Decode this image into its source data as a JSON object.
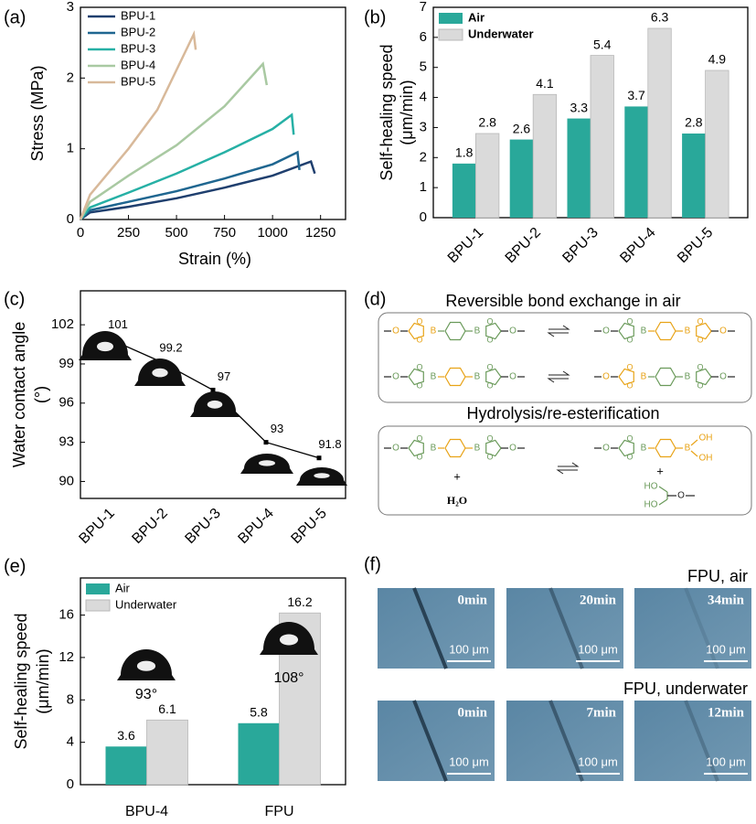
{
  "chart_data": [
    {
      "type": "line",
      "panel_label": "(a)",
      "x_label": "Strain (%)",
      "y_label": [
        "Stress (MPa)"
      ],
      "xlim": [
        0,
        1380
      ],
      "xticks": [
        0,
        250,
        500,
        750,
        1000,
        1250
      ],
      "ylim": [
        0,
        3
      ],
      "yticks": [
        0,
        1,
        2,
        3
      ],
      "legend": "upper left",
      "series": [
        {
          "name": "BPU-1",
          "color": "#1f3f6e",
          "x": [
            0,
            50,
            250,
            500,
            750,
            1000,
            1200,
            1220
          ],
          "values": [
            0,
            0.1,
            0.18,
            0.3,
            0.45,
            0.62,
            0.82,
            0.65
          ]
        },
        {
          "name": "BPU-2",
          "color": "#1f6690",
          "x": [
            0,
            50,
            250,
            500,
            750,
            1000,
            1130,
            1140
          ],
          "values": [
            0,
            0.13,
            0.25,
            0.4,
            0.58,
            0.78,
            0.95,
            0.7
          ]
        },
        {
          "name": "BPU-3",
          "color": "#26b0a5",
          "x": [
            0,
            50,
            250,
            500,
            750,
            1000,
            1100,
            1110
          ],
          "values": [
            0,
            0.17,
            0.38,
            0.65,
            0.95,
            1.28,
            1.48,
            1.2
          ]
        },
        {
          "name": "BPU-4",
          "color": "#a9c9a2",
          "x": [
            0,
            50,
            250,
            500,
            750,
            950,
            970
          ],
          "values": [
            0,
            0.25,
            0.62,
            1.05,
            1.6,
            2.2,
            1.9
          ]
        },
        {
          "name": "BPU-5",
          "color": "#d8b99a",
          "x": [
            0,
            50,
            250,
            400,
            590,
            600
          ],
          "values": [
            0,
            0.35,
            1.0,
            1.55,
            2.62,
            2.4
          ]
        }
      ]
    },
    {
      "type": "bar",
      "panel_label": "(b)",
      "y_label": [
        "Self-healing speed",
        "(μm/min)"
      ],
      "categories": [
        "BPU-1",
        "BPU-2",
        "BPU-3",
        "BPU-4",
        "BPU-5"
      ],
      "ylim": [
        0,
        7
      ],
      "yticks": [
        0,
        1,
        2,
        3,
        4,
        5,
        6,
        7
      ],
      "legend": "upper left",
      "series": [
        {
          "name": "Air",
          "color": "#29a89a",
          "values": [
            1.8,
            2.6,
            3.3,
            3.7,
            2.8
          ]
        },
        {
          "name": "Underwater",
          "color": "#dadada",
          "values": [
            2.8,
            4.1,
            5.4,
            6.3,
            4.9
          ]
        }
      ]
    },
    {
      "type": "line",
      "panel_label": "(c)",
      "y_label": [
        "Water contact angle",
        "(°)"
      ],
      "categories": [
        "BPU-1",
        "BPU-2",
        "BPU-3",
        "BPU-4",
        "BPU-5"
      ],
      "values": [
        101,
        99.2,
        97,
        93,
        91.8
      ],
      "color": "#000000",
      "ylim": [
        88.7,
        104.6
      ],
      "yticks": [
        90,
        93,
        96,
        99,
        102
      ]
    },
    {
      "type": "bar",
      "panel_label": "(e)",
      "y_label": [
        "Self-healing speed",
        "(μm/min)"
      ],
      "categories": [
        "BPU-4",
        "FPU"
      ],
      "annotations": [
        "93°",
        "108°"
      ],
      "ylim": [
        0,
        19.5
      ],
      "yticks": [
        0,
        4,
        8,
        12,
        16
      ],
      "legend": "upper left",
      "series": [
        {
          "name": "Air",
          "color": "#29a89a",
          "values": [
            3.6,
            5.8
          ]
        },
        {
          "name": "Underwater",
          "color": "#dadada",
          "values": [
            6.1,
            16.2
          ]
        }
      ]
    }
  ],
  "diagram": {
    "panel_label": "(d)",
    "title_top": "Reversible bond exchange in air",
    "title_bottom": "Hydrolysis/re-esterification",
    "atoms": {
      "O": "O",
      "B": "B",
      "OH": "OH",
      "HO": "HO"
    },
    "plus": "+",
    "water": "H₂O"
  },
  "micrographs": {
    "panel_label": "(f)",
    "scale_bar": "100 μm",
    "rows": [
      {
        "label": "FPU, air",
        "times": [
          "0min",
          "20min",
          "34min"
        ]
      },
      {
        "label": "FPU, underwater",
        "times": [
          "0min",
          "7min",
          "12min"
        ]
      }
    ]
  }
}
